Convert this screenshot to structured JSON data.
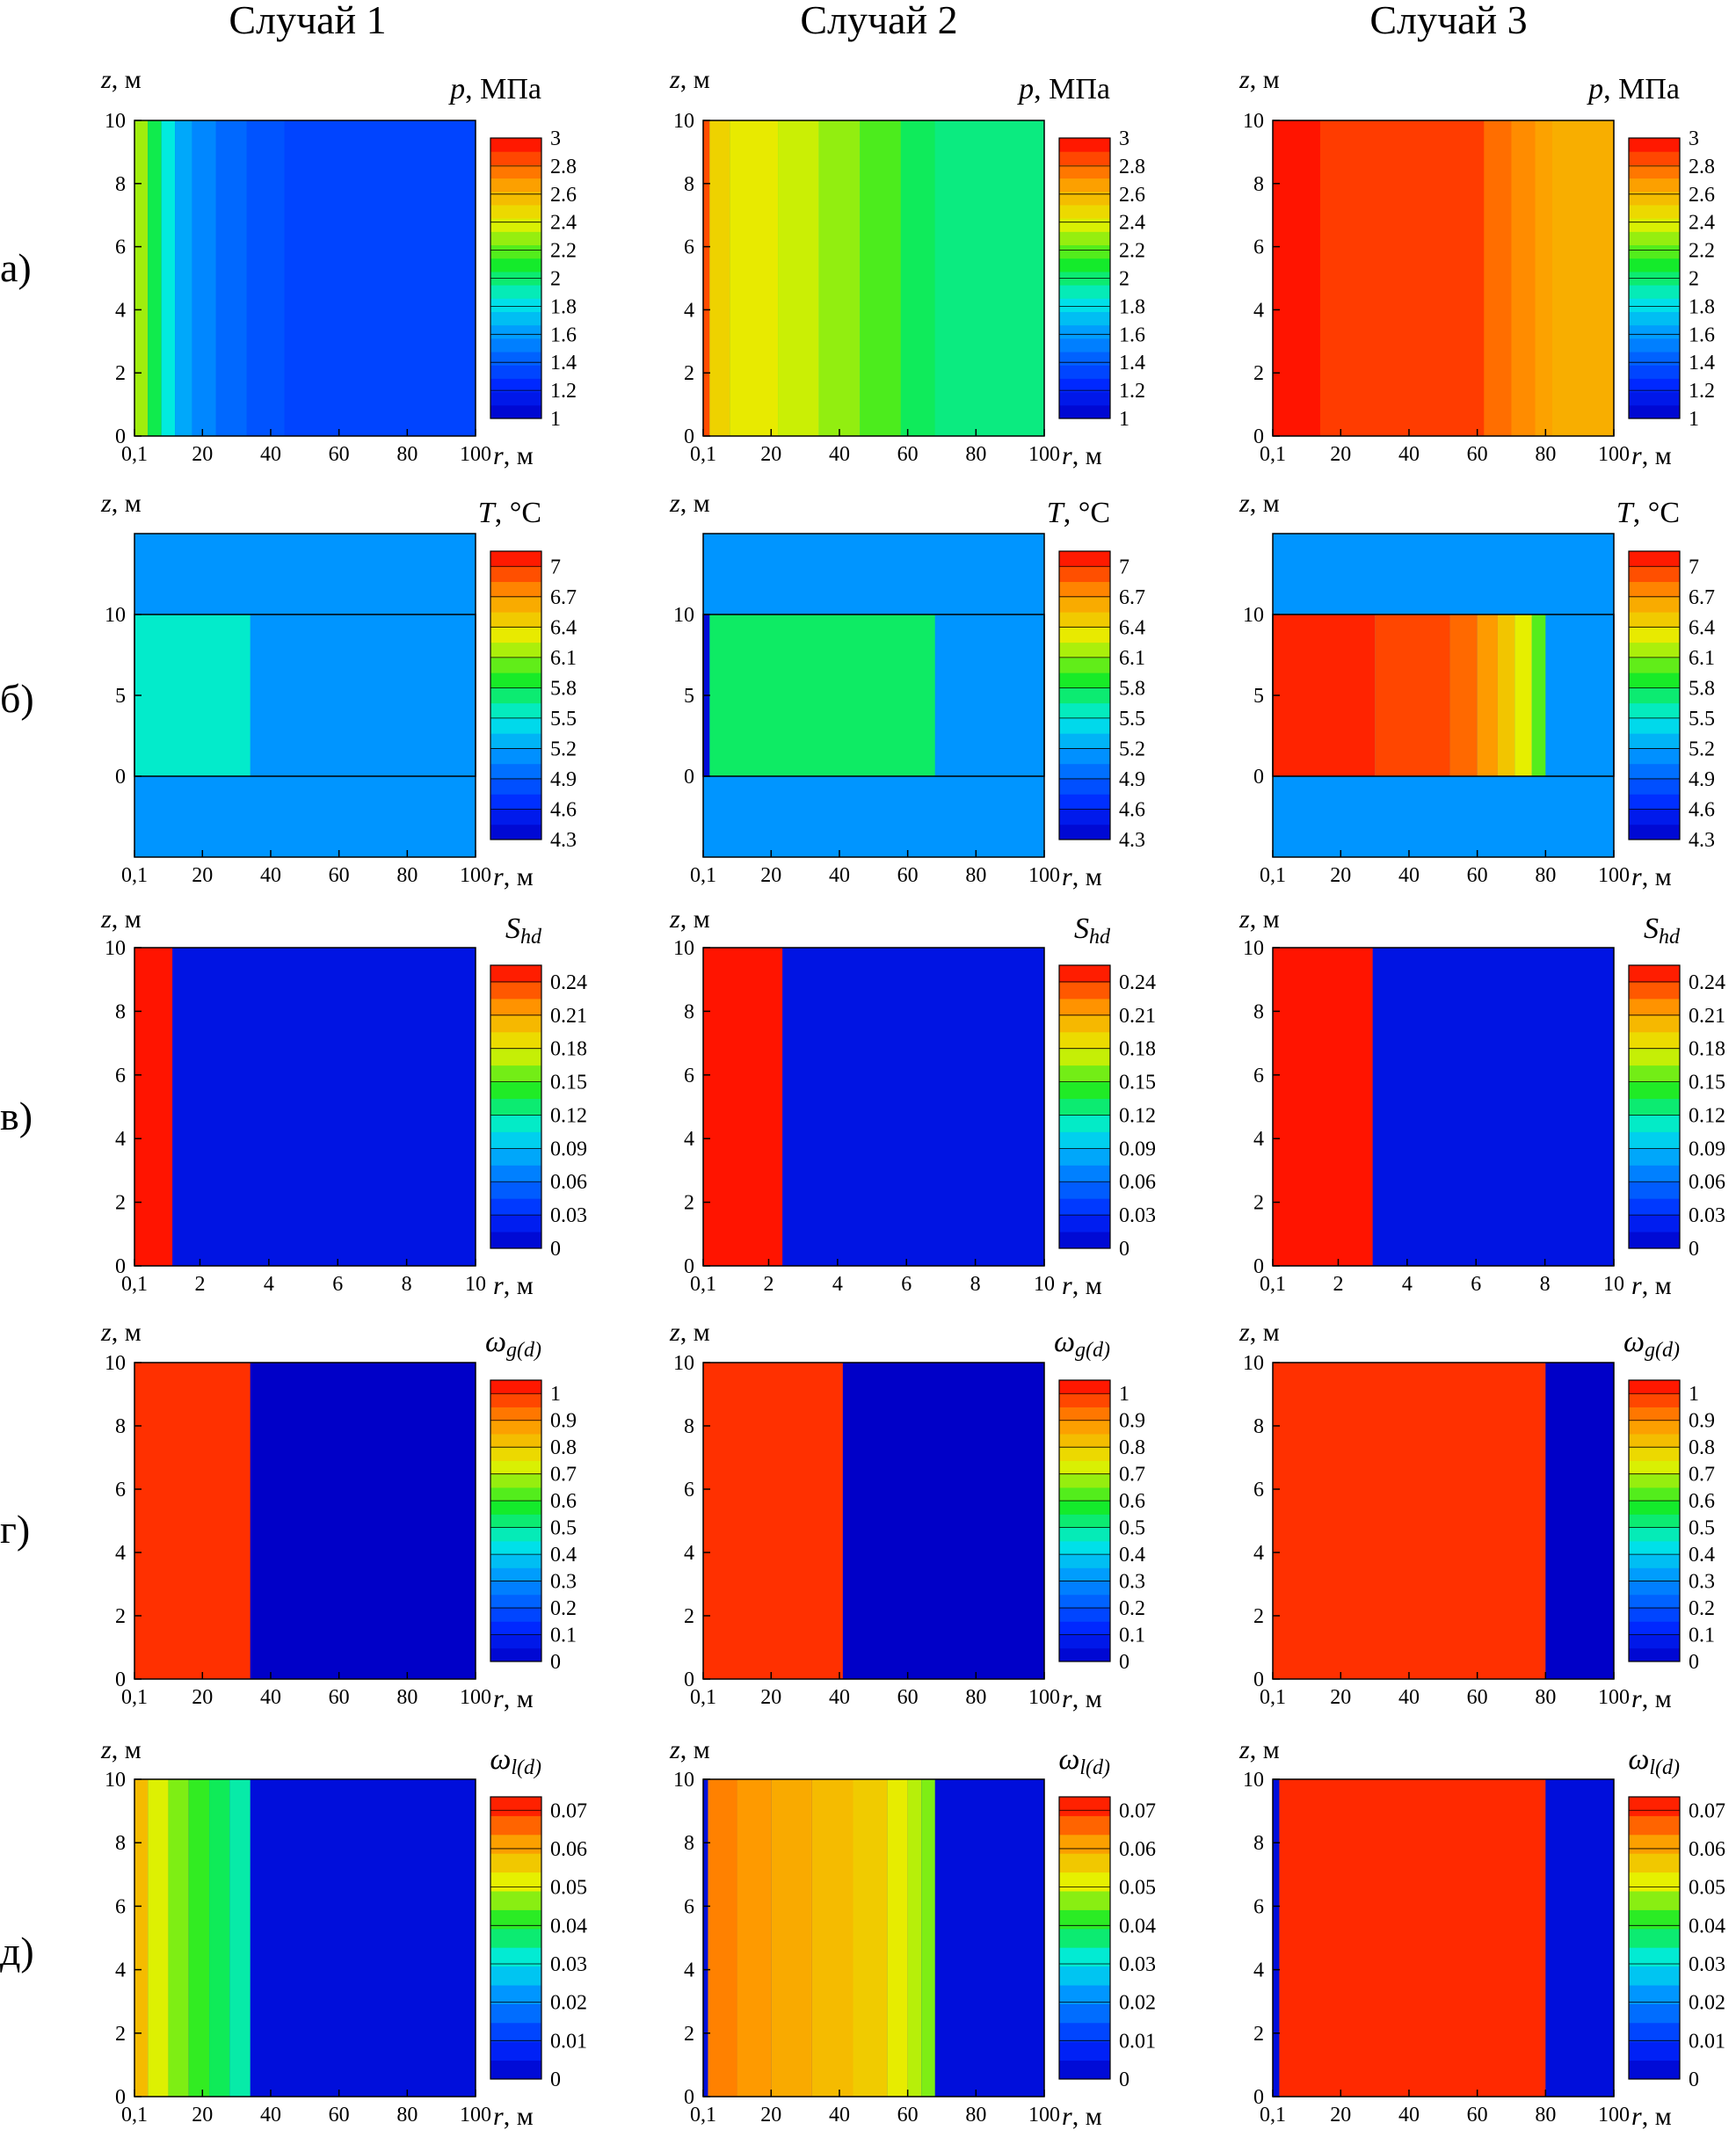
{
  "columns": [
    "Случай 1",
    "Случай 2",
    "Случай 3"
  ],
  "rows": [
    "а)",
    "б)",
    "в)",
    "г)",
    "д)"
  ],
  "chart_data": [
    {
      "type": "heatmap",
      "row_label": "а)",
      "variable": "p, МПа",
      "var_symbol": "p",
      "var_unit": ", МПа",
      "xlabel": "r, м",
      "ylabel": "z, м",
      "xlim": [
        0.1,
        100
      ],
      "ylim": [
        0,
        10
      ],
      "xticks": [
        0.1,
        20,
        40,
        60,
        80,
        100
      ],
      "xtick_labels": [
        "0,1",
        "20",
        "40",
        "60",
        "80",
        "100"
      ],
      "yticks": [
        0,
        2,
        4,
        6,
        8,
        10
      ],
      "colorbar": {
        "min": 1,
        "max": 3,
        "ticks": [
          "1",
          "1.2",
          "1.4",
          "1.6",
          "1.8",
          "2",
          "2.2",
          "2.4",
          "2.6",
          "2.8",
          "3"
        ]
      },
      "cases": [
        {
          "case": "Случай 1",
          "bands": [
            [
              0.1,
              4,
              2.3
            ],
            [
              4,
              8,
              2.05
            ],
            [
              8,
              12,
              1.85
            ],
            [
              12,
              17,
              1.65
            ],
            [
              17,
              24,
              1.55
            ],
            [
              24,
              33,
              1.45
            ],
            [
              33,
              44,
              1.38
            ],
            [
              44,
              100,
              1.33
            ]
          ]
        },
        {
          "case": "Случай 2",
          "bands": [
            [
              0.1,
              2,
              2.85
            ],
            [
              2,
              8,
              2.5
            ],
            [
              8,
              22,
              2.42
            ],
            [
              22,
              34,
              2.36
            ],
            [
              34,
              46,
              2.28
            ],
            [
              46,
              58,
              2.18
            ],
            [
              58,
              68,
              2.03
            ],
            [
              68,
              100,
              1.98
            ]
          ]
        },
        {
          "case": "Случай 3",
          "bands": [
            [
              0.1,
              14,
              2.96
            ],
            [
              14,
              62,
              2.88
            ],
            [
              62,
              70,
              2.78
            ],
            [
              70,
              77,
              2.72
            ],
            [
              77,
              82,
              2.66
            ],
            [
              82,
              100,
              2.62
            ]
          ]
        }
      ]
    },
    {
      "type": "heatmap",
      "row_label": "б)",
      "variable": "T, °C",
      "var_symbol": "T",
      "var_unit": ", °C",
      "xlabel": "r, м",
      "ylabel": "z, м",
      "xlim": [
        0.1,
        100
      ],
      "ylim": [
        -5,
        15
      ],
      "xticks": [
        0.1,
        20,
        40,
        60,
        80,
        100
      ],
      "xtick_labels": [
        "0,1",
        "20",
        "40",
        "60",
        "80",
        "100"
      ],
      "yticks": [
        0,
        5,
        10
      ],
      "colorbar": {
        "min": 4.3,
        "max": 7.15,
        "ticks": [
          "4.3",
          "4.6",
          "4.9",
          "5.2",
          "5.5",
          "5.8",
          "6.1",
          "6.4",
          "6.7",
          "7"
        ]
      },
      "background_value": 5.15,
      "cases": [
        {
          "case": "Случай 1",
          "bands": [
            [
              0.1,
              34,
              5.55
            ]
          ]
        },
        {
          "case": "Случай 2",
          "bands": [
            [
              0.1,
              2,
              4.4
            ],
            [
              2,
              68,
              5.75
            ]
          ]
        },
        {
          "case": "Случай 3",
          "bands": [
            [
              0.1,
              30,
              7.05
            ],
            [
              30,
              52,
              6.95
            ],
            [
              52,
              60,
              6.85
            ],
            [
              60,
              66,
              6.7
            ],
            [
              66,
              71,
              6.5
            ],
            [
              71,
              76,
              6.3
            ],
            [
              76,
              80,
              6.0
            ]
          ]
        }
      ]
    },
    {
      "type": "heatmap",
      "row_label": "в)",
      "variable": "S_hd",
      "var_symbol": "S",
      "var_sub": "hd",
      "xlabel": "r, м",
      "ylabel": "z, м",
      "xlim": [
        0.1,
        10
      ],
      "ylim": [
        0,
        10
      ],
      "xticks": [
        0.1,
        2,
        4,
        6,
        8,
        10
      ],
      "xtick_labels": [
        "0,1",
        "2",
        "4",
        "6",
        "8",
        "10"
      ],
      "yticks": [
        0,
        2,
        4,
        6,
        8,
        10
      ],
      "colorbar": {
        "min": 0,
        "max": 0.255,
        "ticks": [
          "0",
          "0.03",
          "0.06",
          "0.09",
          "0.12",
          "0.15",
          "0.18",
          "0.21",
          "0.24"
        ]
      },
      "background_value": 0.015,
      "cases": [
        {
          "case": "Случай 1",
          "bands": [
            [
              0.1,
              1.2,
              0.25
            ]
          ]
        },
        {
          "case": "Случай 2",
          "bands": [
            [
              0.1,
              2.4,
              0.25
            ]
          ]
        },
        {
          "case": "Случай 3",
          "bands": [
            [
              0.1,
              3.0,
              0.25
            ]
          ]
        }
      ]
    },
    {
      "type": "heatmap",
      "row_label": "г)",
      "variable": "ω_g(d)",
      "var_symbol": "ω",
      "var_sub": "g(d)",
      "xlabel": "r, м",
      "ylabel": "z, м",
      "xlim": [
        0.1,
        100
      ],
      "ylim": [
        0,
        10
      ],
      "xticks": [
        0.1,
        20,
        40,
        60,
        80,
        100
      ],
      "xtick_labels": [
        "0,1",
        "20",
        "40",
        "60",
        "80",
        "100"
      ],
      "yticks": [
        0,
        2,
        4,
        6,
        8,
        10
      ],
      "colorbar": {
        "min": 0,
        "max": 1.05,
        "ticks": [
          "0",
          "0.1",
          "0.2",
          "0.3",
          "0.4",
          "0.5",
          "0.6",
          "0.7",
          "0.8",
          "0.9",
          "1"
        ]
      },
      "background_value": 0.0,
      "cases": [
        {
          "case": "Случай 1",
          "bands": [
            [
              0.1,
              34,
              1.0
            ]
          ]
        },
        {
          "case": "Случай 2",
          "bands": [
            [
              0.1,
              41,
              1.0
            ]
          ]
        },
        {
          "case": "Случай 3",
          "bands": [
            [
              0.1,
              80,
              1.0
            ]
          ]
        }
      ]
    },
    {
      "type": "heatmap",
      "row_label": "д)",
      "variable": "ω_l(d)",
      "var_symbol": "ω",
      "var_sub": "l(d)",
      "xlabel": "r, м",
      "ylabel": "z, м",
      "xlim": [
        0.1,
        100
      ],
      "ylim": [
        0,
        10
      ],
      "xticks": [
        0.1,
        20,
        40,
        60,
        80,
        100
      ],
      "xtick_labels": [
        "0,1",
        "20",
        "40",
        "60",
        "80",
        "100"
      ],
      "yticks": [
        0,
        2,
        4,
        6,
        8,
        10
      ],
      "colorbar": {
        "min": 0,
        "max": 0.0735,
        "ticks": [
          "0",
          "0.01",
          "0.02",
          "0.03",
          "0.04",
          "0.05",
          "0.06",
          "0.07"
        ]
      },
      "background_value": 0.003,
      "cases": [
        {
          "case": "Случай 1",
          "bands": [
            [
              0.1,
              4,
              0.058
            ],
            [
              4,
              10,
              0.051
            ],
            [
              10,
              16,
              0.046
            ],
            [
              16,
              22,
              0.042
            ],
            [
              22,
              28,
              0.038
            ],
            [
              28,
              34,
              0.034
            ]
          ]
        },
        {
          "case": "Случай 2",
          "bands": [
            [
              0.1,
              1.5,
              0.003
            ],
            [
              1.5,
              10,
              0.064
            ],
            [
              10,
              20,
              0.062
            ],
            [
              20,
              32,
              0.06
            ],
            [
              32,
              44,
              0.058
            ],
            [
              44,
              54,
              0.056
            ],
            [
              54,
              60,
              0.052
            ],
            [
              60,
              64,
              0.049
            ],
            [
              64,
              68,
              0.046
            ]
          ]
        },
        {
          "case": "Случай 3",
          "bands": [
            [
              0.1,
              2,
              0.003
            ],
            [
              2,
              80,
              0.0705
            ]
          ]
        }
      ]
    }
  ]
}
